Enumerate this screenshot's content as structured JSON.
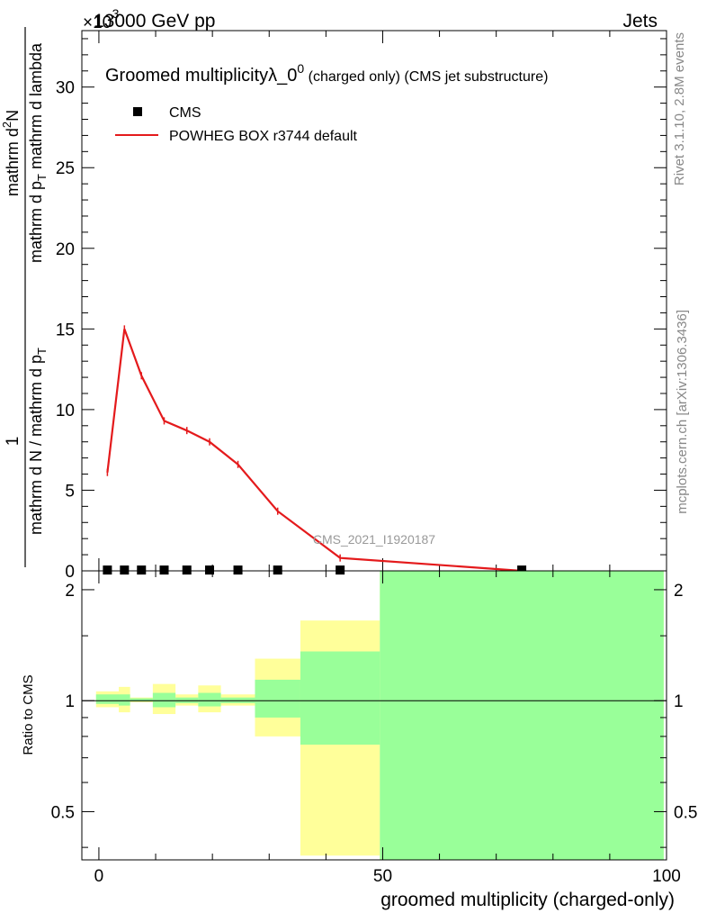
{
  "header": {
    "left": "13000 GeV pp",
    "right": "Jets",
    "exponent_base": "×10",
    "exponent_power": "-3"
  },
  "side_labels": {
    "rivet": "Rivet 3.1.10,  2.8M events",
    "mcplots": "mcplots.cern.ch [arXiv:1306.3436]"
  },
  "watermark": "CMS_2021_I1920187",
  "chart_data": [
    {
      "type": "line",
      "title": "Groomed multiplicityλ_0",
      "title_superscript": "0",
      "title_suffix": " (charged only) (CMS jet substructure)",
      "ylabel_parts": {
        "numerator": "1",
        "denominator": "mathrm d N / mathrm d p",
        "denominator_sub": "T",
        "right_numerator": "mathrm d",
        "right_numerator_sup": "2",
        "right_numerator_end": "N",
        "right_denominator": "mathrm d p",
        "right_denominator_sub": "T",
        "right_denominator_end": " mathrm d lambda"
      },
      "xlim": [
        -3,
        100
      ],
      "ylim": [
        0,
        33.5
      ],
      "y_scale_exponent": -3,
      "yticks": [
        0,
        5,
        10,
        15,
        20,
        25,
        30
      ],
      "legend_position": "top-left",
      "legend": [
        "CMS",
        "POWHEG BOX r3744 default"
      ],
      "series": [
        {
          "name": "CMS",
          "style": "markers",
          "color": "#000000",
          "x": [
            1.5,
            4.5,
            7.5,
            11.5,
            15.5,
            19.5,
            24.5,
            31.5,
            42.5,
            74.5
          ],
          "y": [
            0.05,
            0.05,
            0.05,
            0.05,
            0.05,
            0.05,
            0.05,
            0.05,
            0.05,
            0.05
          ]
        },
        {
          "name": "POWHEG BOX r3744 default",
          "style": "line",
          "color": "#e41a1c",
          "x": [
            1.5,
            4.5,
            7.5,
            11.5,
            15.5,
            19.5,
            24.5,
            31.5,
            42.5,
            74.5
          ],
          "y": [
            6.1,
            15.0,
            12.1,
            9.3,
            8.7,
            8.0,
            6.6,
            3.7,
            0.8,
            0.0
          ]
        }
      ]
    },
    {
      "type": "area",
      "ylabel": "Ratio to CMS",
      "xlabel": "groomed multiplicity (charged-only)",
      "xlim": [
        -3,
        100
      ],
      "xticks": [
        0,
        50,
        100
      ],
      "ylim": [
        0.37,
        2.25
      ],
      "y_scale": "log",
      "yticks": [
        0.5,
        1,
        2
      ],
      "reference_line": 1,
      "bands": [
        {
          "name": "yellow",
          "color": "#ffff9a",
          "bins": [
            {
              "x0": -0.5,
              "x1": 3.5,
              "lo": 0.96,
              "hi": 1.06
            },
            {
              "x0": 3.5,
              "x1": 5.5,
              "lo": 0.93,
              "hi": 1.09
            },
            {
              "x0": 5.5,
              "x1": 9.5,
              "lo": 0.99,
              "hi": 1.02
            },
            {
              "x0": 9.5,
              "x1": 13.5,
              "lo": 0.92,
              "hi": 1.11
            },
            {
              "x0": 13.5,
              "x1": 17.5,
              "lo": 0.97,
              "hi": 1.04
            },
            {
              "x0": 17.5,
              "x1": 21.5,
              "lo": 0.93,
              "hi": 1.1
            },
            {
              "x0": 21.5,
              "x1": 27.5,
              "lo": 0.97,
              "hi": 1.04
            },
            {
              "x0": 27.5,
              "x1": 35.5,
              "lo": 0.8,
              "hi": 1.3
            },
            {
              "x0": 35.5,
              "x1": 49.5,
              "lo": 0.38,
              "hi": 1.65
            },
            {
              "x0": 49.5,
              "x1": 99.5,
              "lo": 0.37,
              "hi": 2.25
            }
          ]
        },
        {
          "name": "green",
          "color": "#99ff99",
          "bins": [
            {
              "x0": -0.5,
              "x1": 3.5,
              "lo": 0.98,
              "hi": 1.04
            },
            {
              "x0": 3.5,
              "x1": 5.5,
              "lo": 0.97,
              "hi": 1.04
            },
            {
              "x0": 5.5,
              "x1": 9.5,
              "lo": 0.995,
              "hi": 1.015
            },
            {
              "x0": 9.5,
              "x1": 13.5,
              "lo": 0.96,
              "hi": 1.05
            },
            {
              "x0": 13.5,
              "x1": 17.5,
              "lo": 0.985,
              "hi": 1.02
            },
            {
              "x0": 17.5,
              "x1": 21.5,
              "lo": 0.965,
              "hi": 1.05
            },
            {
              "x0": 21.5,
              "x1": 27.5,
              "lo": 0.985,
              "hi": 1.02
            },
            {
              "x0": 27.5,
              "x1": 35.5,
              "lo": 0.9,
              "hi": 1.14
            },
            {
              "x0": 35.5,
              "x1": 49.5,
              "lo": 0.76,
              "hi": 1.36
            },
            {
              "x0": 49.5,
              "x1": 99.5,
              "lo": 0.37,
              "hi": 2.25
            }
          ]
        }
      ]
    }
  ]
}
